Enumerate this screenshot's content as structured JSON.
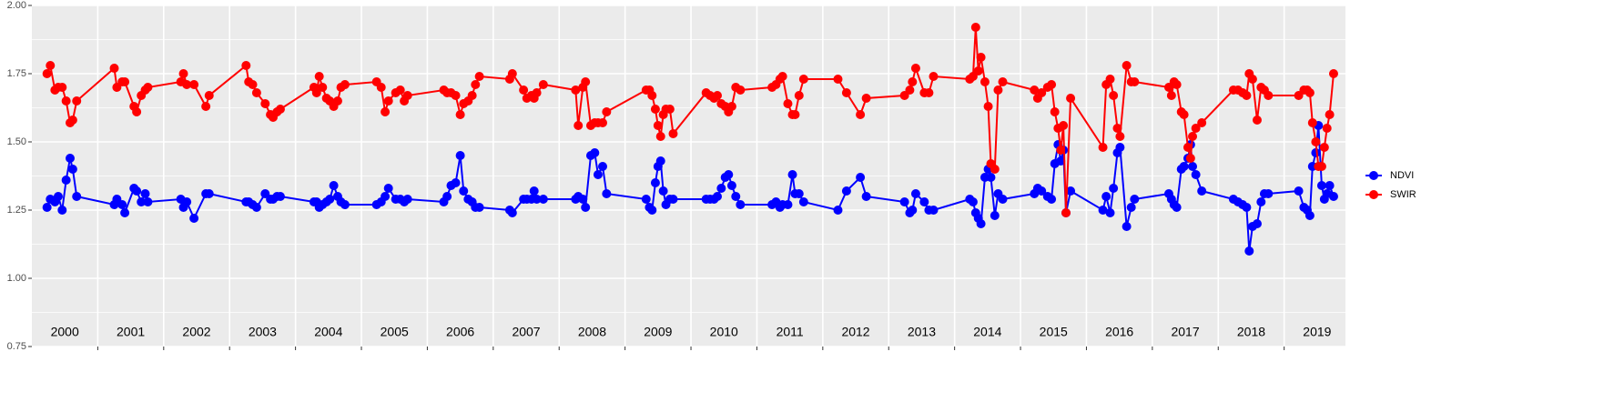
{
  "chart_data": {
    "type": "line",
    "xlim": [
      2000,
      2019.93
    ],
    "ylim": [
      0.75,
      2.0
    ],
    "yticks": [
      0.75,
      {
        "value": 1.0,
        "label": "1.00"
      },
      1.25,
      {
        "value": 1.5,
        "label": "1.50"
      },
      1.75,
      {
        "value": 2.0,
        "label": "2.00"
      }
    ],
    "yminor": [
      0.875,
      1.125,
      1.375,
      1.625,
      1.875
    ],
    "xgrid": [
      2001,
      2002,
      2003,
      2004,
      2005,
      2006,
      2007,
      2008,
      2009,
      2010,
      2011,
      2012,
      2013,
      2014,
      2015,
      2016,
      2017,
      2018,
      2019
    ],
    "xticks": [
      {
        "value": 2000.5,
        "label": "2000"
      },
      {
        "value": 2001.5,
        "label": "2001"
      },
      {
        "value": 2002.5,
        "label": "2002"
      },
      {
        "value": 2003.5,
        "label": "2003"
      },
      {
        "value": 2004.5,
        "label": "2004"
      },
      {
        "value": 2005.5,
        "label": "2005"
      },
      {
        "value": 2006.5,
        "label": "2006"
      },
      {
        "value": 2007.5,
        "label": "2007"
      },
      {
        "value": 2008.5,
        "label": "2008"
      },
      {
        "value": 2009.5,
        "label": "2009"
      },
      {
        "value": 2010.5,
        "label": "2010"
      },
      {
        "value": 2011.5,
        "label": "2011"
      },
      {
        "value": 2012.5,
        "label": "2012"
      },
      {
        "value": 2013.5,
        "label": "2013"
      },
      {
        "value": 2014.5,
        "label": "2014"
      },
      {
        "value": 2015.5,
        "label": "2015"
      },
      {
        "value": 2016.5,
        "label": "2016"
      },
      {
        "value": 2017.5,
        "label": "2017"
      },
      {
        "value": 2018.5,
        "label": "2018"
      },
      {
        "value": 2019.5,
        "label": "2019"
      }
    ],
    "grid": true,
    "legend": "right",
    "x": [
      2000.23,
      2000.28,
      2000.35,
      2000.4,
      2000.46,
      2000.52,
      2000.58,
      2000.62,
      2000.68,
      2001.25,
      2001.29,
      2001.37,
      2001.41,
      2001.55,
      2001.59,
      2001.66,
      2001.72,
      2001.76,
      2002.26,
      2002.3,
      2002.35,
      2002.46,
      2002.64,
      2002.69,
      2003.25,
      2003.29,
      2003.35,
      2003.41,
      2003.54,
      2003.62,
      2003.66,
      2003.72,
      2003.77,
      2004.28,
      2004.32,
      2004.36,
      2004.41,
      2004.47,
      2004.52,
      2004.58,
      2004.64,
      2004.69,
      2004.75,
      2005.23,
      2005.3,
      2005.36,
      2005.41,
      2005.52,
      2005.59,
      2005.65,
      2005.7,
      2006.25,
      2006.3,
      2006.36,
      2006.43,
      2006.5,
      2006.55,
      2006.62,
      2006.68,
      2006.73,
      2006.79,
      2007.25,
      2007.29,
      2007.46,
      2007.51,
      2007.58,
      2007.62,
      2007.66,
      2007.76,
      2008.25,
      2008.29,
      2008.36,
      2008.4,
      2008.48,
      2008.54,
      2008.59,
      2008.66,
      2008.72,
      2009.32,
      2009.37,
      2009.41,
      2009.46,
      2009.5,
      2009.54,
      2009.58,
      2009.62,
      2009.68,
      2009.73,
      2010.23,
      2010.29,
      2010.35,
      2010.4,
      2010.46,
      2010.52,
      2010.57,
      2010.62,
      2010.68,
      2010.75,
      2011.23,
      2011.29,
      2011.35,
      2011.39,
      2011.47,
      2011.54,
      2011.58,
      2011.64,
      2011.71,
      2012.23,
      2012.36,
      2012.57,
      2012.66,
      2013.24,
      2013.32,
      2013.36,
      2013.41,
      2013.54,
      2013.61,
      2013.68,
      2014.23,
      2014.28,
      2014.32,
      2014.36,
      2014.4,
      2014.46,
      2014.51,
      2014.55,
      2014.61,
      2014.66,
      2014.73,
      2015.21,
      2015.26,
      2015.32,
      2015.41,
      2015.47,
      2015.52,
      2015.57,
      2015.61,
      2015.65,
      2015.69,
      2015.76,
      2016.25,
      2016.3,
      2016.36,
      2016.41,
      2016.47,
      2016.51,
      2016.61,
      2016.68,
      2016.73,
      2017.25,
      2017.29,
      2017.33,
      2017.37,
      2017.44,
      2017.48,
      2017.54,
      2017.58,
      2017.61,
      2017.66,
      2017.75,
      2018.23,
      2018.3,
      2018.37,
      2018.43,
      2018.47,
      2018.52,
      2018.59,
      2018.65,
      2018.7,
      2018.76,
      2019.22,
      2019.3,
      2019.35,
      2019.39,
      2019.43,
      2019.48,
      2019.52,
      2019.57,
      2019.61,
      2019.65,
      2019.69,
      2019.75
    ],
    "series": [
      {
        "name": "NDVI",
        "color": "#0000ff",
        "values": [
          1.26,
          1.29,
          1.28,
          1.3,
          1.25,
          1.36,
          1.44,
          1.4,
          1.3,
          1.27,
          1.29,
          1.27,
          1.24,
          1.33,
          1.32,
          1.28,
          1.31,
          1.28,
          1.29,
          1.26,
          1.28,
          1.22,
          1.31,
          1.31,
          1.28,
          1.28,
          1.27,
          1.26,
          1.31,
          1.29,
          1.29,
          1.3,
          1.3,
          1.28,
          1.28,
          1.26,
          1.27,
          1.28,
          1.29,
          1.34,
          1.3,
          1.28,
          1.27,
          1.27,
          1.28,
          1.3,
          1.33,
          1.29,
          1.29,
          1.28,
          1.29,
          1.28,
          1.3,
          1.34,
          1.35,
          1.45,
          1.32,
          1.29,
          1.28,
          1.26,
          1.26,
          1.25,
          1.24,
          1.29,
          1.29,
          1.29,
          1.32,
          1.29,
          1.29,
          1.29,
          1.3,
          1.29,
          1.26,
          1.45,
          1.46,
          1.38,
          1.41,
          1.31,
          1.29,
          1.26,
          1.25,
          1.35,
          1.41,
          1.43,
          1.32,
          1.27,
          1.29,
          1.29,
          1.29,
          1.29,
          1.29,
          1.3,
          1.33,
          1.37,
          1.38,
          1.34,
          1.3,
          1.27,
          1.27,
          1.28,
          1.26,
          1.27,
          1.27,
          1.38,
          1.31,
          1.31,
          1.28,
          1.25,
          1.32,
          1.37,
          1.3,
          1.28,
          1.24,
          1.25,
          1.31,
          1.28,
          1.25,
          1.25,
          1.29,
          1.28,
          1.24,
          1.22,
          1.2,
          1.37,
          1.4,
          1.37,
          1.23,
          1.31,
          1.29,
          1.31,
          1.33,
          1.32,
          1.3,
          1.29,
          1.42,
          1.49,
          1.43,
          1.47,
          1.24,
          1.32,
          1.25,
          1.3,
          1.24,
          1.33,
          1.46,
          1.48,
          1.19,
          1.26,
          1.29,
          1.31,
          1.29,
          1.27,
          1.26,
          1.4,
          1.41,
          1.44,
          1.49,
          1.41,
          1.38,
          1.32,
          1.29,
          1.28,
          1.27,
          1.26,
          1.1,
          1.19,
          1.2,
          1.28,
          1.31,
          1.31,
          1.32,
          1.26,
          1.25,
          1.23,
          1.41,
          1.46,
          1.56,
          1.34,
          1.29,
          1.31,
          1.34,
          1.3
        ]
      },
      {
        "name": "SWIR",
        "color": "#ff0000",
        "values": [
          1.75,
          1.78,
          1.69,
          1.7,
          1.7,
          1.65,
          1.57,
          1.58,
          1.65,
          1.77,
          1.7,
          1.72,
          1.72,
          1.63,
          1.61,
          1.67,
          1.69,
          1.7,
          1.72,
          1.75,
          1.71,
          1.71,
          1.63,
          1.67,
          1.78,
          1.72,
          1.71,
          1.68,
          1.64,
          1.6,
          1.59,
          1.61,
          1.62,
          1.7,
          1.68,
          1.74,
          1.7,
          1.66,
          1.65,
          1.63,
          1.65,
          1.7,
          1.71,
          1.72,
          1.7,
          1.61,
          1.65,
          1.68,
          1.69,
          1.65,
          1.67,
          1.69,
          1.68,
          1.68,
          1.67,
          1.6,
          1.64,
          1.65,
          1.67,
          1.71,
          1.74,
          1.73,
          1.75,
          1.69,
          1.66,
          1.67,
          1.66,
          1.68,
          1.71,
          1.69,
          1.56,
          1.7,
          1.72,
          1.56,
          1.57,
          1.57,
          1.57,
          1.61,
          1.69,
          1.69,
          1.67,
          1.62,
          1.56,
          1.52,
          1.6,
          1.62,
          1.62,
          1.53,
          1.68,
          1.67,
          1.66,
          1.67,
          1.64,
          1.63,
          1.61,
          1.63,
          1.7,
          1.69,
          1.7,
          1.71,
          1.73,
          1.74,
          1.64,
          1.6,
          1.6,
          1.67,
          1.73,
          1.73,
          1.68,
          1.6,
          1.66,
          1.67,
          1.69,
          1.72,
          1.77,
          1.68,
          1.68,
          1.74,
          1.73,
          1.74,
          1.92,
          1.76,
          1.81,
          1.72,
          1.63,
          1.42,
          1.4,
          1.69,
          1.72,
          1.69,
          1.66,
          1.68,
          1.7,
          1.71,
          1.61,
          1.55,
          1.47,
          1.56,
          1.24,
          1.66,
          1.48,
          1.71,
          1.73,
          1.67,
          1.55,
          1.52,
          1.78,
          1.72,
          1.72,
          1.7,
          1.67,
          1.72,
          1.71,
          1.61,
          1.6,
          1.48,
          1.44,
          1.52,
          1.55,
          1.57,
          1.69,
          1.69,
          1.68,
          1.67,
          1.75,
          1.73,
          1.58,
          1.7,
          1.69,
          1.67,
          1.67,
          1.69,
          1.69,
          1.68,
          1.57,
          1.5,
          1.41,
          1.41,
          1.48,
          1.55,
          1.6,
          1.75
        ]
      }
    ]
  }
}
